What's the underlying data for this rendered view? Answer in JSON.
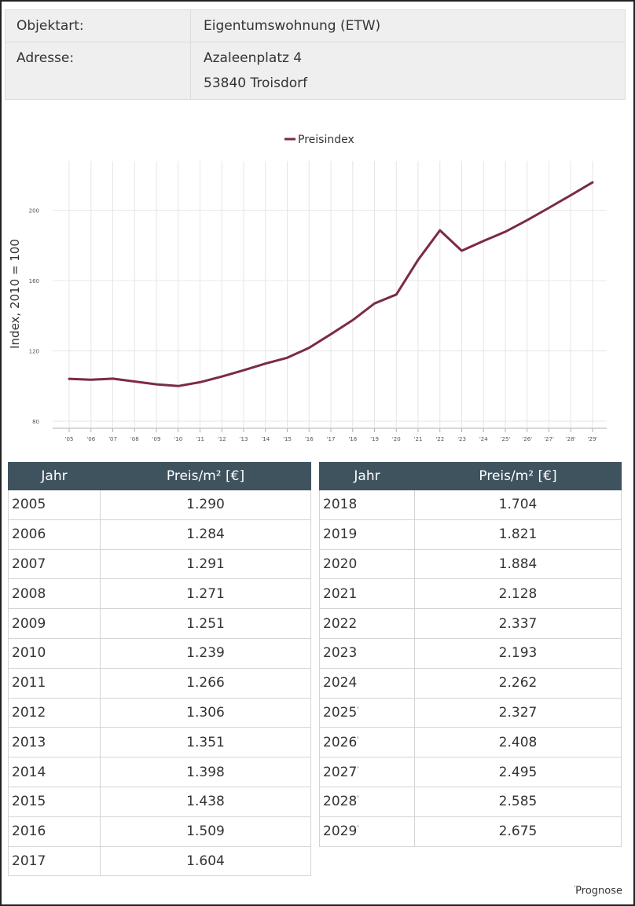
{
  "info": {
    "object_type_label": "Objektart:",
    "object_type_value": "Eigentumswohnung (ETW)",
    "address_label": "Adresse:",
    "address_line1": "Azaleenplatz 4",
    "address_line2": "53840 Troisdorf"
  },
  "chart_data": {
    "type": "line",
    "title": "",
    "ylabel": "Index, 2010 = 100",
    "xlabel": "",
    "categories": [
      "'05",
      "'06",
      "'07",
      "'08",
      "'09",
      "'10",
      "'11",
      "'12",
      "'13",
      "'14",
      "'15",
      "'16",
      "'17",
      "'18",
      "'19",
      "'20",
      "'21",
      "'22",
      "'23",
      "'24",
      "'25'",
      "'26'",
      "'27'",
      "'28'",
      "'29'"
    ],
    "series": [
      {
        "name": "Preisindex",
        "color": "#7b2a48",
        "values": [
          104.1,
          103.6,
          104.2,
          102.6,
          101.0,
          100.0,
          102.2,
          105.4,
          109.0,
          112.8,
          116.1,
          121.8,
          129.5,
          137.5,
          147.0,
          152.1,
          171.8,
          188.6,
          177.0,
          182.6,
          187.8,
          194.4,
          201.4,
          208.6,
          215.9
        ]
      }
    ],
    "ylim": [
      76,
      228
    ],
    "yticks": [
      80,
      120,
      160,
      200
    ],
    "grid": true,
    "legend_position": "top"
  },
  "prices": {
    "col_year": "Jahr",
    "col_price": "Preis/m² [€]",
    "left": [
      {
        "year": "2005",
        "price": "1.290",
        "mark": ""
      },
      {
        "year": "2006",
        "price": "1.284",
        "mark": ""
      },
      {
        "year": "2007",
        "price": "1.291",
        "mark": ""
      },
      {
        "year": "2008",
        "price": "1.271",
        "mark": ""
      },
      {
        "year": "2009",
        "price": "1.251",
        "mark": ""
      },
      {
        "year": "2010",
        "price": "1.239",
        "mark": ""
      },
      {
        "year": "2011",
        "price": "1.266",
        "mark": ""
      },
      {
        "year": "2012",
        "price": "1.306",
        "mark": ""
      },
      {
        "year": "2013",
        "price": "1.351",
        "mark": ""
      },
      {
        "year": "2014",
        "price": "1.398",
        "mark": ""
      },
      {
        "year": "2015",
        "price": "1.438",
        "mark": ""
      },
      {
        "year": "2016",
        "price": "1.509",
        "mark": ""
      },
      {
        "year": "2017",
        "price": "1.604",
        "mark": ""
      }
    ],
    "right": [
      {
        "year": "2018",
        "price": "1.704",
        "mark": ""
      },
      {
        "year": "2019",
        "price": "1.821",
        "mark": ""
      },
      {
        "year": "2020",
        "price": "1.884",
        "mark": ""
      },
      {
        "year": "2021",
        "price": "2.128",
        "mark": ""
      },
      {
        "year": "2022",
        "price": "2.337",
        "mark": ""
      },
      {
        "year": "2023",
        "price": "2.193",
        "mark": ""
      },
      {
        "year": "2024",
        "price": "2.262",
        "mark": ""
      },
      {
        "year": "2025",
        "price": "2.327",
        "mark": "'"
      },
      {
        "year": "2026",
        "price": "2.408",
        "mark": "'"
      },
      {
        "year": "2027",
        "price": "2.495",
        "mark": "'"
      },
      {
        "year": "2028",
        "price": "2.585",
        "mark": "'"
      },
      {
        "year": "2029",
        "price": "2.675",
        "mark": "'"
      }
    ]
  },
  "footnote": {
    "mark": "'",
    "text": "Prognose"
  }
}
